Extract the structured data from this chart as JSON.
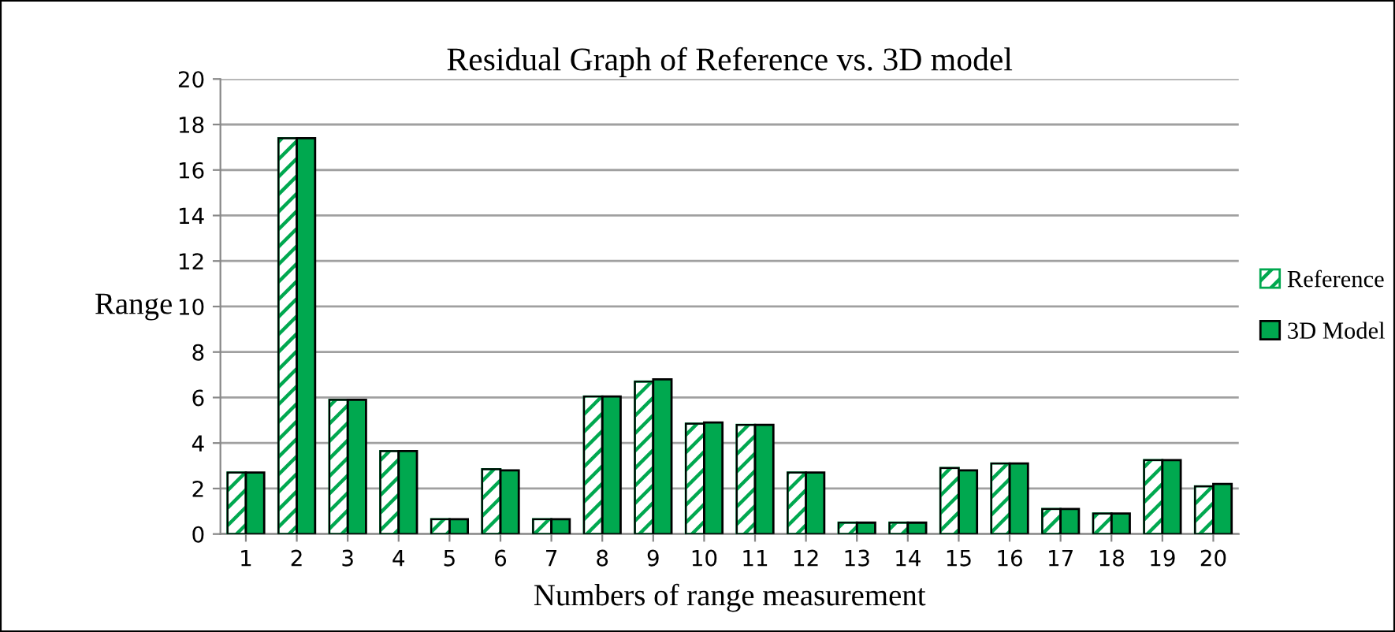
{
  "chart_data": {
    "type": "bar",
    "title": "Residual Graph of Reference vs. 3D model",
    "xlabel": "Numbers of range measurement",
    "ylabel": "Range",
    "categories": [
      "1",
      "2",
      "3",
      "4",
      "5",
      "6",
      "7",
      "8",
      "9",
      "10",
      "11",
      "12",
      "13",
      "14",
      "15",
      "16",
      "17",
      "18",
      "19",
      "20"
    ],
    "series": [
      {
        "name": "Reference",
        "color": "#00a84f",
        "values": [
          2.7,
          17.4,
          5.9,
          3.65,
          0.65,
          2.85,
          0.65,
          6.05,
          6.7,
          4.85,
          4.8,
          2.7,
          0.5,
          0.5,
          2.9,
          3.1,
          1.1,
          0.9,
          3.25,
          2.1
        ]
      },
      {
        "name": "3D Model",
        "color": "#00a84f",
        "values": [
          2.7,
          17.4,
          5.9,
          3.65,
          0.65,
          2.8,
          0.65,
          6.05,
          6.8,
          4.9,
          4.8,
          2.7,
          0.5,
          0.5,
          2.8,
          3.1,
          1.1,
          0.9,
          3.25,
          2.2
        ]
      }
    ],
    "ylim": [
      0,
      20
    ],
    "yticks": [
      0,
      2,
      4,
      6,
      8,
      10,
      12,
      14,
      16,
      18,
      20
    ],
    "grid": "y",
    "legend": "right"
  }
}
